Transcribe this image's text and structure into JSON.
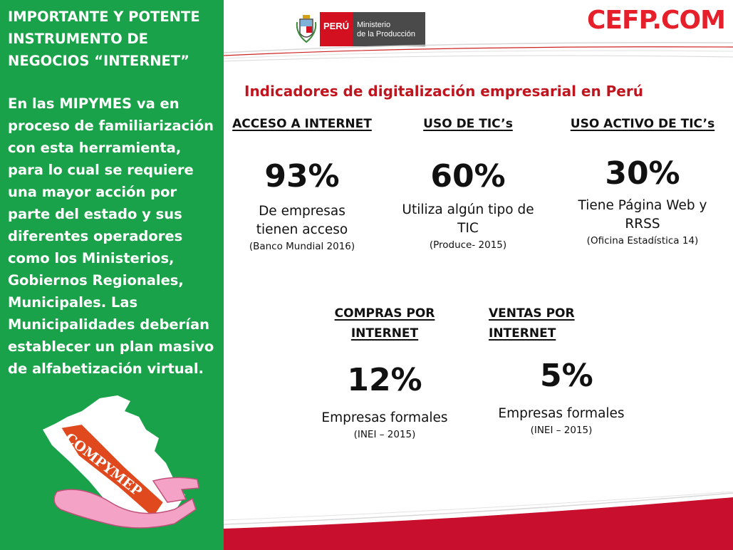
{
  "sidebar": {
    "heading": "IMPORTANTE Y POTENTE INSTRUMENTO DE NEGOCIOS “INTERNET”",
    "body": "En las MIPYMES va en proceso de familiarización con esta herramienta, para lo cual se requiere una mayor acción por parte del estado y sus diferentes operadores como los Ministerios, Gobiernos Regionales, Municipales. Las Municipalidades deberían establecer un plan masivo de alfabetización virtual.",
    "logo_text": "COMPYMEP"
  },
  "header": {
    "peru_label": "PERÚ",
    "ministry_line1": "Ministerio",
    "ministry_line2": "de la Producción",
    "brand": "CEFP.COM"
  },
  "title": "Indicadores de digitalización empresarial en Perú",
  "indicators": [
    {
      "heading": "ACCESO A INTERNET",
      "value": "93%",
      "desc1": "De empresas",
      "desc2": "tienen  acceso",
      "source": "(Banco Mundial 2016)"
    },
    {
      "heading": "USO DE TIC’s",
      "value": "60%",
      "desc1": "Utiliza algún tipo de",
      "desc2": "TIC",
      "source": "(Produce- 2015)"
    },
    {
      "heading": "USO ACTIVO DE TIC’s",
      "value": "30%",
      "desc1": "Tiene Página Web y",
      "desc2": "RRSS",
      "source": "(Oficina Estadística 14)"
    },
    {
      "heading1": "COMPRAS POR",
      "heading2": "INTERNET",
      "value": "12%",
      "desc1": "Empresas formales",
      "source": "(INEI – 2015)"
    },
    {
      "heading1": "VENTAS POR",
      "heading2": "INTERNET",
      "value": "5%",
      "desc1": "Empresas formales",
      "source": "(INEI – 2015)"
    }
  ],
  "colors": {
    "sidebar": "#1aa24a",
    "accent_red": "#e6202b",
    "title_red": "#c0141e"
  }
}
